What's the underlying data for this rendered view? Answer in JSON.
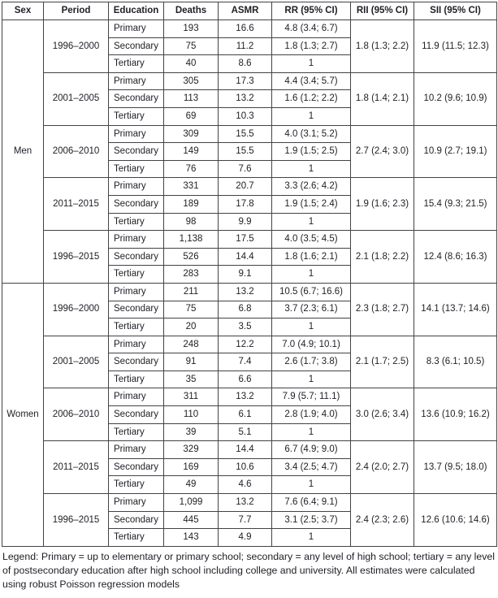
{
  "colors": {
    "border": "#434343",
    "text": "#1e1e26",
    "background": "#ffffff"
  },
  "table": {
    "headers": [
      "Sex",
      "Period",
      "Education",
      "Deaths",
      "ASMR",
      "RR (95% CI)",
      "RII (95% CI)",
      "SII (95% CI)"
    ],
    "groups": [
      {
        "sex": "Men",
        "periods": [
          {
            "period": "1996–2000",
            "rows": [
              {
                "education": "Primary",
                "deaths": "193",
                "asmr": "16.6",
                "rr": "4.8 (3.4; 6.7)"
              },
              {
                "education": "Secondary",
                "deaths": "75",
                "asmr": "11.2",
                "rr": "1.8 (1.3; 2.7)"
              },
              {
                "education": "Tertiary",
                "deaths": "40",
                "asmr": "8.6",
                "rr": "1"
              }
            ],
            "rii": "1.8 (1.3; 2.2)",
            "sii": "11.9 (11.5; 12.3)"
          },
          {
            "period": "2001–2005",
            "rows": [
              {
                "education": "Primary",
                "deaths": "305",
                "asmr": "17.3",
                "rr": "4.4 (3.4; 5.7)"
              },
              {
                "education": "Secondary",
                "deaths": "113",
                "asmr": "13.2",
                "rr": "1.6 (1.2; 2.2)"
              },
              {
                "education": "Tertiary",
                "deaths": "69",
                "asmr": "10.3",
                "rr": "1"
              }
            ],
            "rii": "1.8 (1.4; 2.1)",
            "sii": "10.2 (9.6; 10.9)"
          },
          {
            "period": "2006–2010",
            "rows": [
              {
                "education": "Primary",
                "deaths": "309",
                "asmr": "15.5",
                "rr": "4.0 (3.1; 5.2)"
              },
              {
                "education": "Secondary",
                "deaths": "149",
                "asmr": "15.5",
                "rr": "1.9 (1.5; 2.5)"
              },
              {
                "education": "Tertiary",
                "deaths": "76",
                "asmr": "7.6",
                "rr": "1"
              }
            ],
            "rii": "2.7 (2.4; 3.0)",
            "sii": "10.9 (2.7; 19.1)"
          },
          {
            "period": "2011–2015",
            "rows": [
              {
                "education": "Primary",
                "deaths": "331",
                "asmr": "20.7",
                "rr": "3.3 (2.6; 4.2)"
              },
              {
                "education": "Secondary",
                "deaths": "189",
                "asmr": "17.8",
                "rr": "1.9 (1.5; 2.4)"
              },
              {
                "education": "Tertiary",
                "deaths": "98",
                "asmr": "9.9",
                "rr": "1"
              }
            ],
            "rii": "1.9 (1.6; 2.3)",
            "sii": "15.4 (9.3; 21.5)"
          },
          {
            "period": "1996–2015",
            "rows": [
              {
                "education": "Primary",
                "deaths": "1,138",
                "asmr": "17.5",
                "rr": "4.0 (3.5; 4.5)"
              },
              {
                "education": "Secondary",
                "deaths": "526",
                "asmr": "14.4",
                "rr": "1.8 (1.6; 2.1)"
              },
              {
                "education": "Tertiary",
                "deaths": "283",
                "asmr": "9.1",
                "rr": "1"
              }
            ],
            "rii": "2.1 (1.8; 2.2)",
            "sii": "12.4 (8.6; 16.3)"
          }
        ]
      },
      {
        "sex": "Women",
        "periods": [
          {
            "period": "1996–2000",
            "rows": [
              {
                "education": "Primary",
                "deaths": "211",
                "asmr": "13.2",
                "rr": "10.5 (6.7; 16.6)"
              },
              {
                "education": "Secondary",
                "deaths": "75",
                "asmr": "6.8",
                "rr": "3.7 (2.3; 6.1)"
              },
              {
                "education": "Tertiary",
                "deaths": "20",
                "asmr": "3.5",
                "rr": "1"
              }
            ],
            "rii": "2.3 (1.8; 2.7)",
            "sii": "14.1 (13.7; 14.6)"
          },
          {
            "period": "2001–2005",
            "rows": [
              {
                "education": "Primary",
                "deaths": "248",
                "asmr": "12.2",
                "rr": "7.0 (4.9; 10.1)"
              },
              {
                "education": "Secondary",
                "deaths": "91",
                "asmr": "7.4",
                "rr": "2.6 (1.7; 3.8)"
              },
              {
                "education": "Tertiary",
                "deaths": "35",
                "asmr": "6.6",
                "rr": "1"
              }
            ],
            "rii": "2.1 (1.7; 2.5)",
            "sii": "8.3 (6.1; 10.5)"
          },
          {
            "period": "2006–2010",
            "rows": [
              {
                "education": "Primary",
                "deaths": "311",
                "asmr": "13.2",
                "rr": "7.9 (5.7; 11.1)"
              },
              {
                "education": "Secondary",
                "deaths": "110",
                "asmr": "6.1",
                "rr": "2.8 (1.9; 4.0)"
              },
              {
                "education": "Tertiary",
                "deaths": "39",
                "asmr": "5.1",
                "rr": "1"
              }
            ],
            "rii": "3.0 (2.6; 3.4)",
            "sii": "13.6 (10.9; 16.2)"
          },
          {
            "period": "2011–2015",
            "rows": [
              {
                "education": "Primary",
                "deaths": "329",
                "asmr": "14.4",
                "rr": "6.7 (4.9; 9.0)"
              },
              {
                "education": "Secondary",
                "deaths": "169",
                "asmr": "10.6",
                "rr": "3.4 (2.5; 4.7)"
              },
              {
                "education": "Tertiary",
                "deaths": "49",
                "asmr": "4.6",
                "rr": "1"
              }
            ],
            "rii": "2.4 (2.0; 2.7)",
            "sii": "13.7 (9.5; 18.0)"
          },
          {
            "period": "1996–2015",
            "rows": [
              {
                "education": "Primary",
                "deaths": "1,099",
                "asmr": "13.2",
                "rr": "7.6 (6.4; 9.1)"
              },
              {
                "education": "Secondary",
                "deaths": "445",
                "asmr": "7.7",
                "rr": "3.1 (2.5; 3.7)"
              },
              {
                "education": "Tertiary",
                "deaths": "143",
                "asmr": "4.9",
                "rr": "1"
              }
            ],
            "rii": "2.4 (2.3; 2.6)",
            "sii": "12.6 (10.6; 14.6)"
          }
        ]
      }
    ]
  },
  "legend": {
    "text": "Legend: Primary = up to elementary or primary school; secondary = any level of high school; tertiary = any level of postsecondary education after high school including college and university. All estimates were calculated using robust Poisson regression models"
  }
}
